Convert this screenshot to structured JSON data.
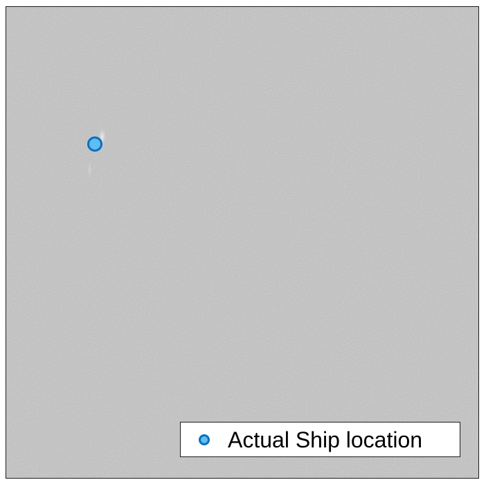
{
  "legend": {
    "label": "Actual Ship location"
  },
  "colors": {
    "sea_background": "#8c8c8c",
    "marker_fill": "#5ebef0",
    "marker_edge": "#0b6fc0",
    "frame": "#1a1a1a"
  },
  "markers": [
    {
      "name": "actual-ship-location"
    }
  ]
}
